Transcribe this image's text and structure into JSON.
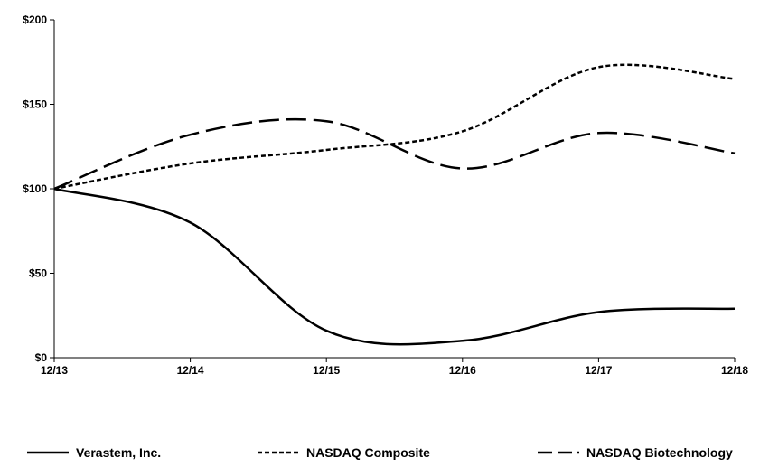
{
  "chart_data": {
    "type": "line",
    "x": [
      "12/13",
      "12/14",
      "12/15",
      "12/16",
      "12/17",
      "12/18"
    ],
    "ylim": [
      0,
      200
    ],
    "yticks": [
      0,
      50,
      100,
      150,
      200
    ],
    "ytick_labels": [
      "$0",
      "$50",
      "$100",
      "$150",
      "$200"
    ],
    "grid": false,
    "legend_position": "bottom",
    "series": [
      {
        "name": "Verastem, Inc.",
        "values": [
          100,
          80,
          16,
          10,
          27,
          29
        ],
        "line_style": "solid",
        "color": "#000000"
      },
      {
        "name": "NASDAQ Composite",
        "values": [
          100,
          115,
          123,
          134,
          172,
          165
        ],
        "line_style": "short-dash",
        "color": "#000000"
      },
      {
        "name": "NASDAQ Biotechnology",
        "values": [
          100,
          132,
          140,
          112,
          133,
          121
        ],
        "line_style": "long-dash",
        "color": "#000000"
      }
    ]
  }
}
